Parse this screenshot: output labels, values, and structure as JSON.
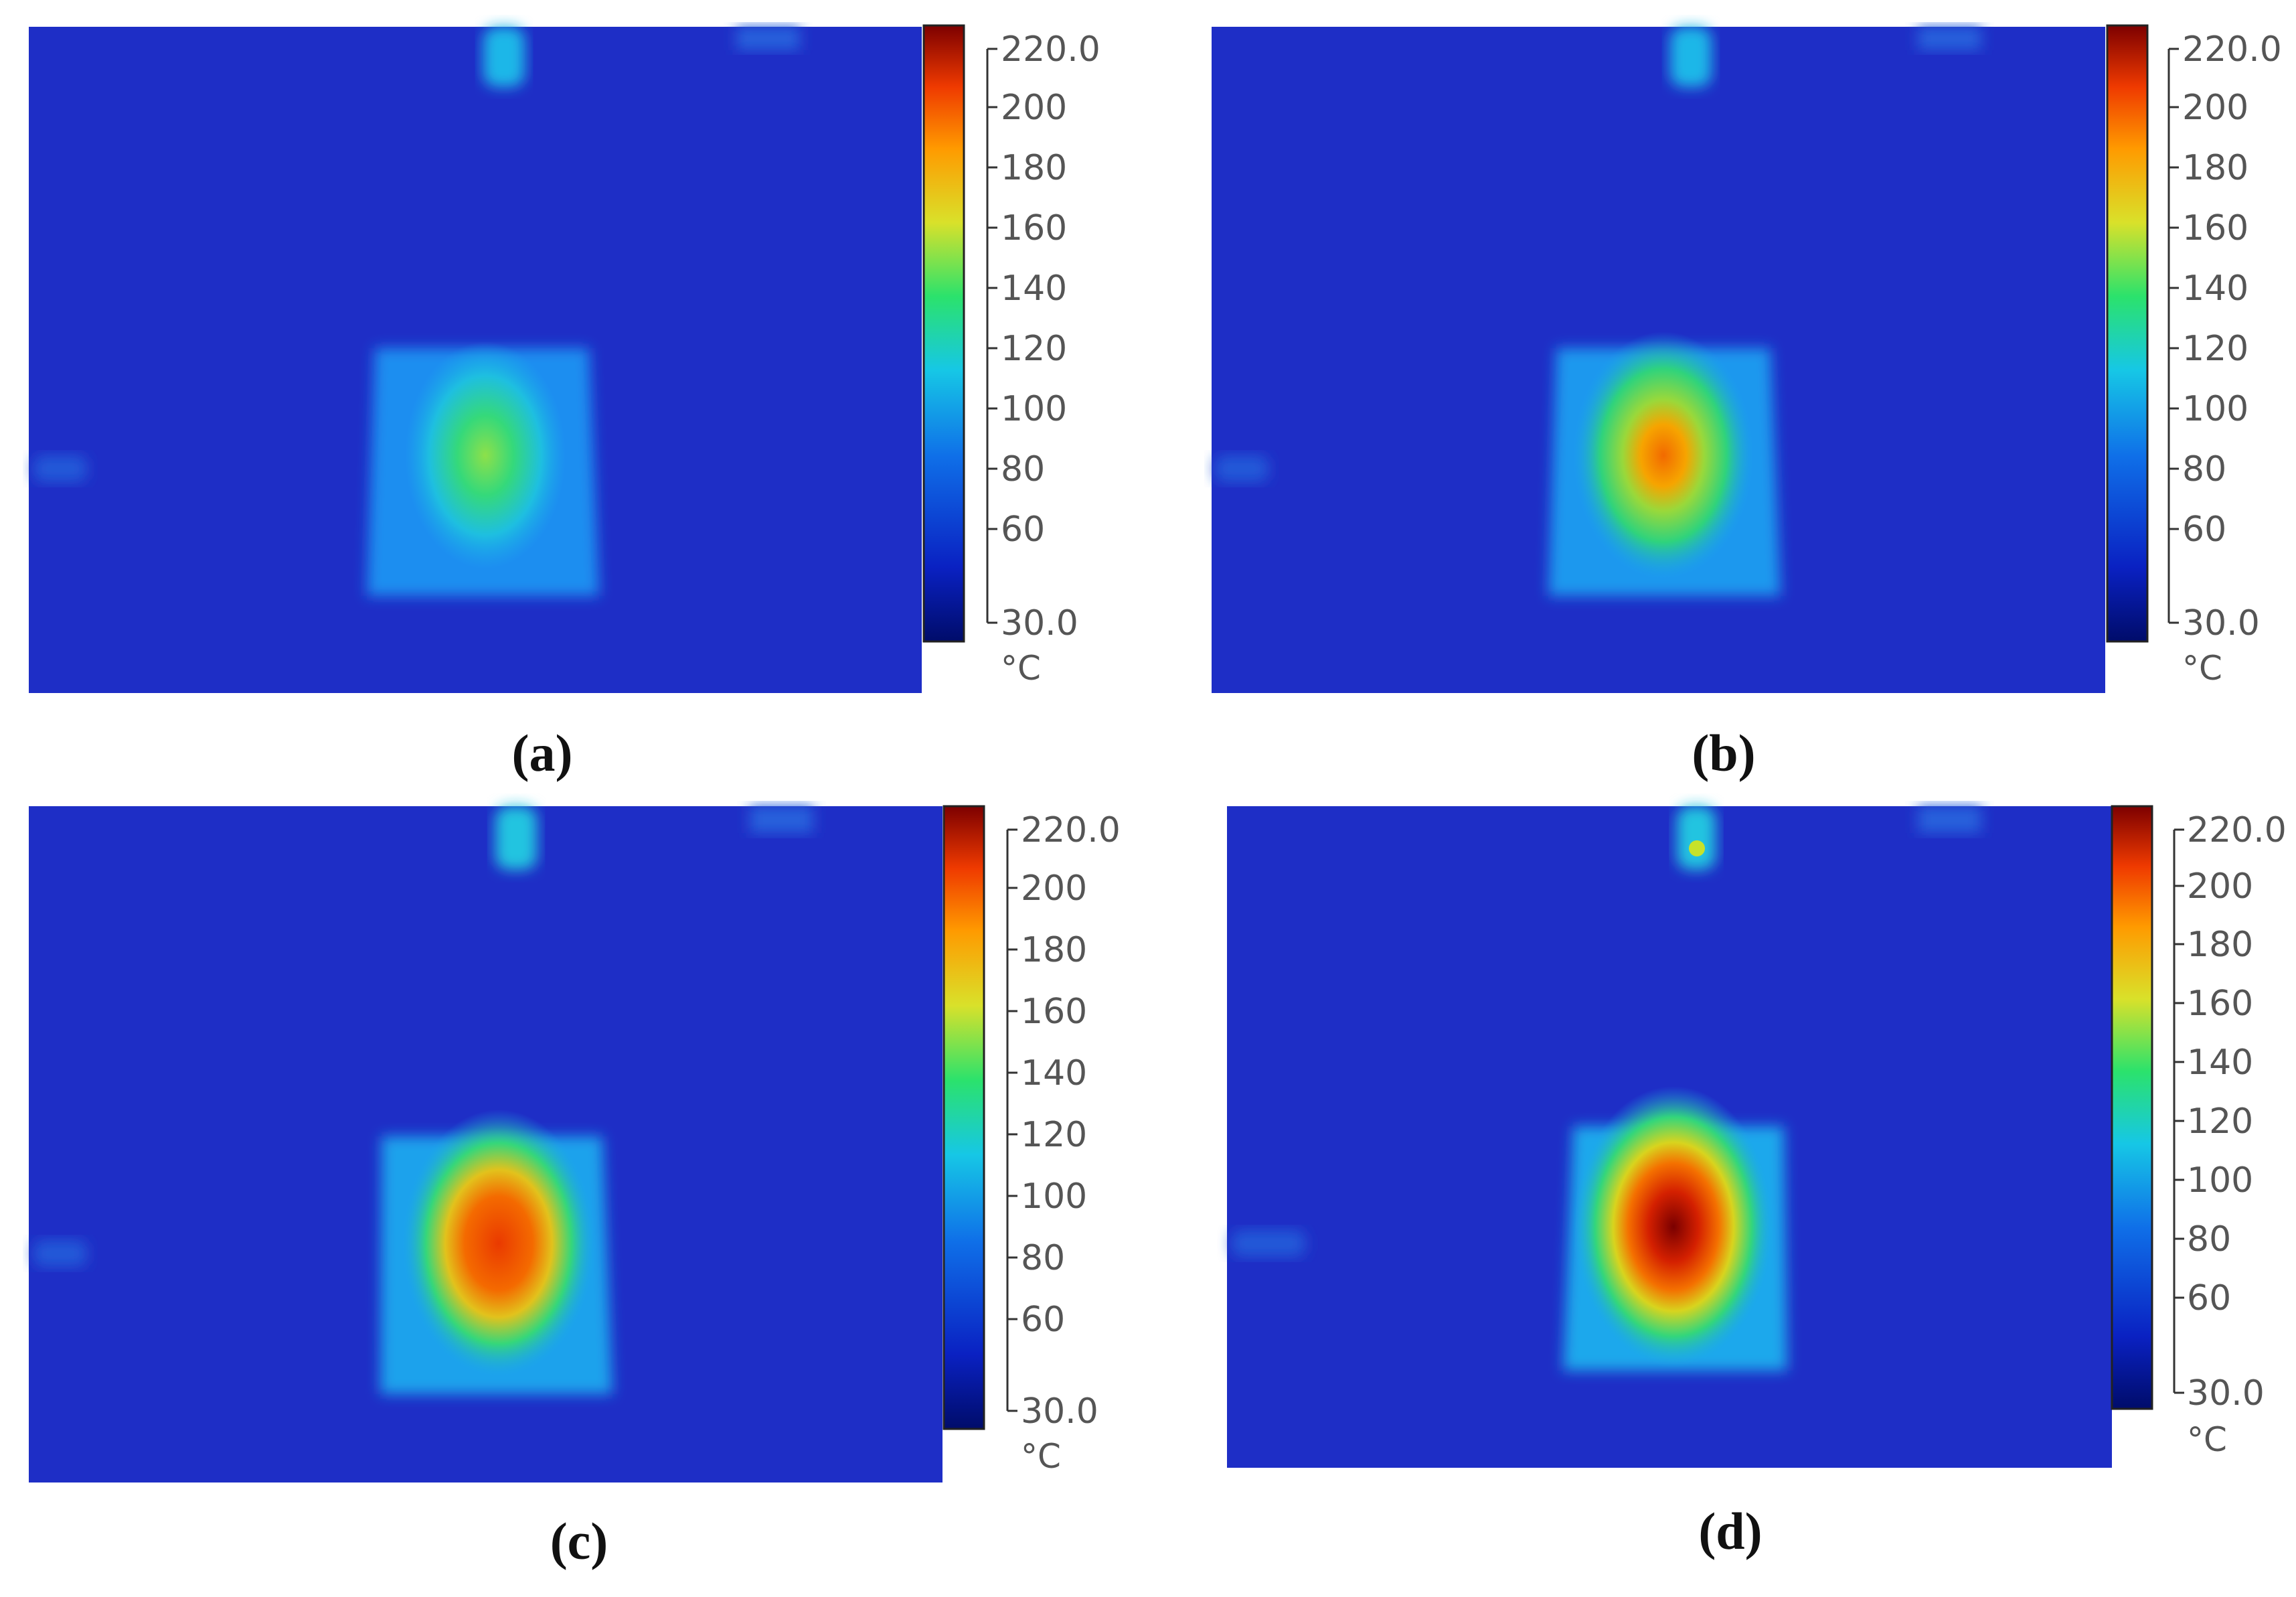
{
  "figure": {
    "colors": {
      "background": "#1e2ec6",
      "scale_stops": [
        "#000c6a",
        "#0a21c2",
        "#0f6fe8",
        "#16c7e6",
        "#2be26c",
        "#d9e12a",
        "#ff9a00",
        "#ef3a00",
        "#7d0000"
      ]
    },
    "panels": [
      {
        "caption": "(a)",
        "scale": {
          "max_label": "220.0",
          "min_label": "30.0",
          "tick_labels": [
            "200",
            "180",
            "160",
            "140",
            "120",
            "100",
            "80",
            "60"
          ],
          "unit": "°C"
        },
        "hot_spot": {
          "peak_temperature_level": 0.55
        }
      },
      {
        "caption": "(b)",
        "scale": {
          "max_label": "220.0",
          "min_label": "30.0",
          "tick_labels": [
            "200",
            "180",
            "160",
            "140",
            "120",
            "100",
            "80",
            "60"
          ],
          "unit": "°C"
        },
        "hot_spot": {
          "peak_temperature_level": 0.8
        }
      },
      {
        "caption": "(c)",
        "scale": {
          "max_label": "220.0",
          "min_label": "30.0",
          "tick_labels": [
            "200",
            "180",
            "160",
            "140",
            "120",
            "100",
            "80",
            "60"
          ],
          "unit": "°C"
        },
        "hot_spot": {
          "peak_temperature_level": 0.9
        }
      },
      {
        "caption": "(d)",
        "scale": {
          "max_label": "220.0",
          "min_label": "30.0",
          "tick_labels": [
            "200",
            "180",
            "160",
            "140",
            "120",
            "100",
            "80",
            "60"
          ],
          "unit": "°C"
        },
        "hot_spot": {
          "peak_temperature_level": 1.0
        }
      }
    ]
  }
}
